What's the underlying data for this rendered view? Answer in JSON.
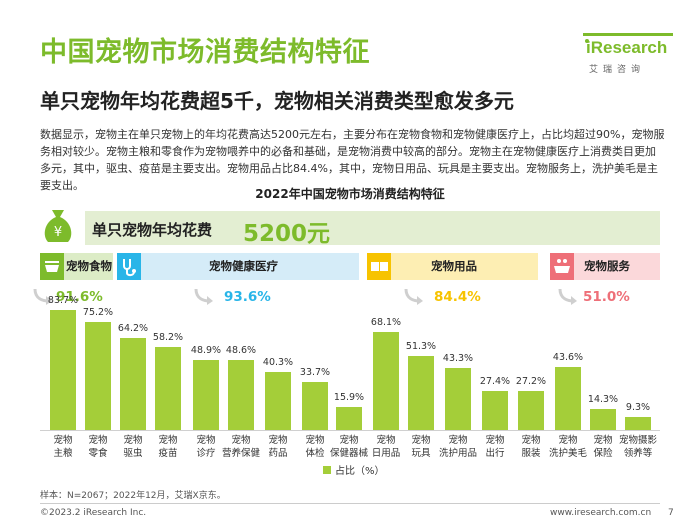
{
  "title": "中国宠物市场消费结构特征",
  "subtitle": "单只宠物年均花费超5千，宠物相关消费类型愈发多元",
  "logo": {
    "word": "iResearch",
    "sub": "艾瑞咨询"
  },
  "description": "数据显示，宠物主在单只宠物上的年均花费高达5200元左右，主要分布在宠物食物和宠物健康医疗上，占比均超过90%，宠物服务相对较少。宠物主粮和零食作为宠物喂养中的必备和基础，是宠物消费中较高的部分。宠物主在宠物健康医疗上消费类目更加多元，其中，驱虫、疫苗是主要支出。宠物用品占比84.4%，其中，宠物日用品、玩具是主要支出。宠物服务上，洗护美毛是主要支出。",
  "banner": {
    "label": "单只宠物年均花费",
    "value": "5200元"
  },
  "colors": {
    "title": "#7dbb2b",
    "bar": "#a4ce39",
    "food": "#7dbb2b",
    "health": "#29b5e8",
    "supplies": "#f7c300",
    "service": "#ee6f78"
  },
  "categories": [
    {
      "name": "宠物食物",
      "share": "91.6%",
      "icon": "food-bowl-icon"
    },
    {
      "name": "宠物健康医疗",
      "share": "93.6%",
      "icon": "stethoscope-icon"
    },
    {
      "name": "宠物用品",
      "share": "84.4%",
      "icon": "toy-blocks-icon"
    },
    {
      "name": "宠物服务",
      "share": "51.0%",
      "icon": "bath-icon"
    }
  ],
  "chart_data": {
    "type": "bar",
    "title": "2022年中国宠物市场消费结构特征",
    "categories": [
      "宠物\n主粮",
      "宠物\n零食",
      "宠物\n驱虫",
      "宠物\n疫苗",
      "宠物\n诊疗",
      "宠物\n营养保健",
      "宠物\n药品",
      "宠物\n体检",
      "宠物\n保健器械",
      "宠物\n日用品",
      "宠物\n玩具",
      "宠物\n洗护用品",
      "宠物\n出行",
      "宠物\n服装",
      "宠物\n洗护美毛",
      "宠物\n保险",
      "宠物摄影\n领养等"
    ],
    "values": [
      83.7,
      75.2,
      64.2,
      58.2,
      48.9,
      48.6,
      40.3,
      33.7,
      15.9,
      68.1,
      51.3,
      43.3,
      27.4,
      27.2,
      43.6,
      14.3,
      9.3
    ],
    "value_labels": [
      "83.7%",
      "75.2%",
      "64.2%",
      "58.2%",
      "48.9%",
      "48.6%",
      "40.3%",
      "33.7%",
      "15.9%",
      "68.1%",
      "51.3%",
      "43.3%",
      "27.4%",
      "27.2%",
      "43.6%",
      "14.3%",
      "9.3%"
    ],
    "groups": [
      "宠物食物",
      "宠物食物",
      "宠物健康医疗",
      "宠物健康医疗",
      "宠物健康医疗",
      "宠物健康医疗",
      "宠物健康医疗",
      "宠物健康医疗",
      "宠物健康医疗",
      "宠物用品",
      "宠物用品",
      "宠物用品",
      "宠物用品",
      "宠物用品",
      "宠物服务",
      "宠物服务",
      "宠物服务"
    ],
    "legend": "占比（%）",
    "ylim": [
      0,
      100
    ],
    "ylabel": "",
    "xlabel": ""
  },
  "footnote": "样本：N=2067；2022年12月，艾瑞X京东。",
  "footer": {
    "copyright": "©2023.2 iResearch Inc.",
    "website": "www.iresearch.com.cn",
    "page": "7"
  }
}
